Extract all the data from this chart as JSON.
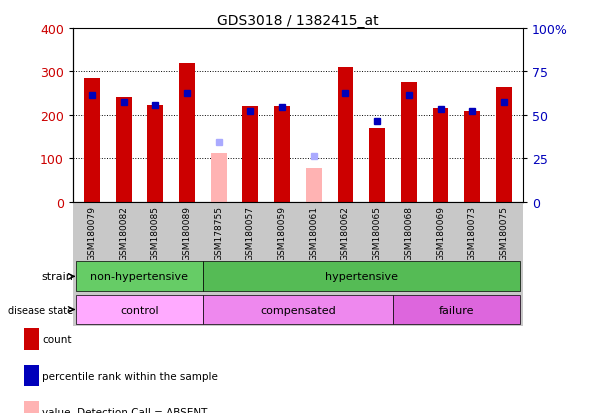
{
  "title": "GDS3018 / 1382415_at",
  "samples": [
    "GSM180079",
    "GSM180082",
    "GSM180085",
    "GSM180089",
    "GSM178755",
    "GSM180057",
    "GSM180059",
    "GSM180061",
    "GSM180062",
    "GSM180065",
    "GSM180068",
    "GSM180069",
    "GSM180073",
    "GSM180075"
  ],
  "count_values": [
    285,
    242,
    222,
    320,
    null,
    220,
    220,
    null,
    310,
    170,
    275,
    215,
    210,
    265
  ],
  "percentile_values": [
    245,
    230,
    222,
    250,
    null,
    210,
    218,
    null,
    250,
    185,
    245,
    213,
    210,
    230
  ],
  "absent_value_values": [
    null,
    null,
    null,
    null,
    113,
    null,
    null,
    78,
    null,
    null,
    null,
    null,
    null,
    null
  ],
  "absent_rank_values": [
    null,
    null,
    null,
    null,
    138,
    null,
    null,
    105,
    null,
    null,
    null,
    null,
    null,
    null
  ],
  "strain_groups": [
    {
      "label": "non-hypertensive",
      "start": 0,
      "end": 4,
      "color": "#66cc66"
    },
    {
      "label": "hypertensive",
      "start": 4,
      "end": 14,
      "color": "#55bb55"
    }
  ],
  "disease_groups": [
    {
      "label": "control",
      "start": 0,
      "end": 4,
      "color": "#ffaaff"
    },
    {
      "label": "compensated",
      "start": 4,
      "end": 10,
      "color": "#ee88ee"
    },
    {
      "label": "failure",
      "start": 10,
      "end": 14,
      "color": "#dd66dd"
    }
  ],
  "ylim_left": [
    0,
    400
  ],
  "ylim_right": [
    0,
    100
  ],
  "yticks_left": [
    0,
    100,
    200,
    300,
    400
  ],
  "yticks_right": [
    0,
    25,
    50,
    75,
    100
  ],
  "ytick_labels_right": [
    "0",
    "25",
    "50",
    "75",
    "100%"
  ],
  "count_color": "#cc0000",
  "percentile_color": "#0000bb",
  "absent_value_color": "#ffb3b3",
  "absent_rank_color": "#aaaaff",
  "background_color": "#ffffff",
  "tick_label_color_left": "#cc0000",
  "tick_label_color_right": "#0000bb",
  "gray_area_color": "#c8c8c8",
  "strain_label": "strain",
  "disease_label": "disease state"
}
